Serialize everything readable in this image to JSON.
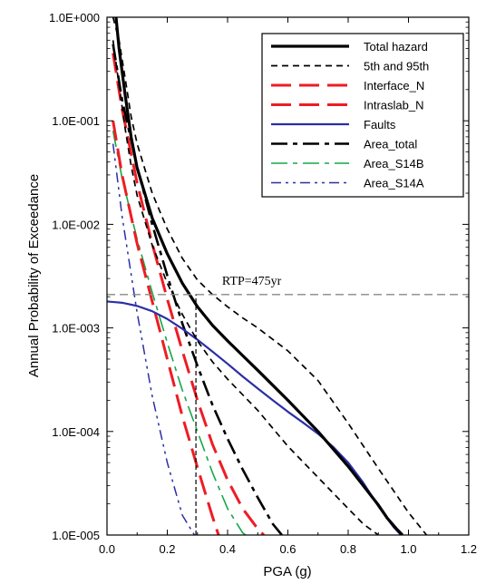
{
  "chart_data": {
    "type": "line",
    "title": "",
    "xlabel": "PGA (g)",
    "ylabel": "Annual Probability of Exceedance",
    "xlim": [
      0,
      1.2
    ],
    "ylim": [
      1e-05,
      1
    ],
    "yscale": "log",
    "x_ticks": [
      {
        "value": 0.0,
        "label": "0.0"
      },
      {
        "value": 0.2,
        "label": "0.2"
      },
      {
        "value": 0.4,
        "label": "0.4"
      },
      {
        "value": 0.6,
        "label": "0.6"
      },
      {
        "value": 0.8,
        "label": "0.8"
      },
      {
        "value": 1.0,
        "label": "1.0"
      },
      {
        "value": 1.2,
        "label": "1.2"
      }
    ],
    "y_ticks": [
      {
        "value": 1,
        "label": "1.0E+000"
      },
      {
        "value": 0.1,
        "label": "1.0E-001"
      },
      {
        "value": 0.01,
        "label": "1.0E-002"
      },
      {
        "value": 0.001,
        "label": "1.0E-003"
      },
      {
        "value": 0.0001,
        "label": "1.0E-004"
      },
      {
        "value": 1e-05,
        "label": "1.0E-005"
      }
    ],
    "legend": "top-right",
    "grid": false,
    "annotations": [
      {
        "text": "RTP=475yr",
        "x": 0.48,
        "y": 0.0026
      },
      {
        "type": "hline",
        "y": 0.0021,
        "x_from": 0.0,
        "x_to": 1.2
      },
      {
        "type": "vline",
        "x": 0.295,
        "y_from": 1e-05,
        "y_to": 0.0021
      }
    ],
    "series": [
      {
        "name": "Total hazard",
        "color": "#000000",
        "style": "solid",
        "width": 3.2,
        "x": [
          0.03,
          0.04,
          0.06,
          0.08,
          0.1,
          0.15,
          0.2,
          0.25,
          0.3,
          0.35,
          0.4,
          0.45,
          0.5,
          0.6,
          0.7,
          0.8,
          0.85,
          0.9,
          0.93,
          0.96,
          0.98
        ],
        "y": [
          1.0,
          0.5,
          0.18,
          0.07,
          0.035,
          0.0115,
          0.0052,
          0.0027,
          0.0016,
          0.00106,
          0.00075,
          0.00054,
          0.00039,
          0.0002,
          0.0001,
          4.6e-05,
          3e-05,
          1.95e-05,
          1.45e-05,
          1.15e-05,
          1e-05
        ]
      },
      {
        "name": "5th and 95th",
        "color": "#000000",
        "style": "dash-short",
        "width": 1.7,
        "lines": [
          {
            "x": [
              0.02,
              0.04,
              0.06,
              0.08,
              0.1,
              0.15,
              0.2,
              0.25,
              0.3,
              0.35,
              0.4,
              0.45,
              0.5,
              0.6,
              0.7,
              0.8,
              0.9,
              1.0,
              1.06
            ],
            "y": [
              1.0,
              0.6,
              0.26,
              0.11,
              0.06,
              0.02,
              0.009,
              0.0047,
              0.0029,
              0.0021,
              0.0016,
              0.00125,
              0.001,
              0.0006,
              0.00031,
              0.00012,
              4.4e-05,
              1.65e-05,
              1e-05
            ]
          },
          {
            "x": [
              0.02,
              0.04,
              0.06,
              0.08,
              0.1,
              0.15,
              0.2,
              0.25,
              0.3,
              0.35,
              0.4,
              0.5,
              0.6,
              0.7,
              0.8,
              0.85,
              0.9
            ],
            "y": [
              0.6,
              0.22,
              0.085,
              0.037,
              0.019,
              0.0063,
              0.0027,
              0.00135,
              0.00075,
              0.00047,
              0.00032,
              0.00016,
              7.2e-05,
              3.6e-05,
              1.8e-05,
              1.28e-05,
              1e-05
            ]
          }
        ]
      },
      {
        "name": "Interface_N",
        "color": "#ee1c24",
        "style": "dash-long",
        "width": 3.0,
        "x": [
          0.02,
          0.05,
          0.1,
          0.15,
          0.2,
          0.25,
          0.3,
          0.35,
          0.4,
          0.45,
          0.5,
          0.52
        ],
        "y": [
          0.45,
          0.13,
          0.025,
          0.0065,
          0.0019,
          0.0006,
          0.0002,
          7.5e-05,
          3.4e-05,
          1.8e-05,
          1.15e-05,
          1e-05
        ]
      },
      {
        "name": "Intraslab_N",
        "color": "#ee1c24",
        "style": "dash-long",
        "width": 3.0,
        "x": [
          0.02,
          0.05,
          0.1,
          0.15,
          0.2,
          0.25,
          0.3,
          0.35,
          0.37
        ],
        "y": [
          0.1,
          0.03,
          0.0065,
          0.0018,
          0.0005,
          0.00014,
          4.5e-05,
          1.5e-05,
          1e-05
        ]
      },
      {
        "name": "Faults",
        "color": "#2b2fa6",
        "style": "solid",
        "width": 2.2,
        "x": [
          0.0,
          0.05,
          0.1,
          0.15,
          0.2,
          0.25,
          0.3,
          0.35,
          0.4,
          0.45,
          0.5,
          0.55,
          0.6,
          0.65,
          0.7,
          0.75,
          0.8,
          0.85,
          0.9,
          0.95,
          0.975
        ],
        "y": [
          0.0018,
          0.00175,
          0.00163,
          0.00145,
          0.00122,
          0.00098,
          0.00077,
          0.00059,
          0.00045,
          0.00034,
          0.00026,
          0.0002,
          0.000155,
          0.000122,
          9.5e-05,
          7.1e-05,
          5e-05,
          3.2e-05,
          1.9e-05,
          1.2e-05,
          1e-05
        ]
      },
      {
        "name": "Area_total",
        "color": "#000000",
        "style": "dash-dot",
        "width": 2.6,
        "x": [
          0.02,
          0.05,
          0.1,
          0.15,
          0.2,
          0.25,
          0.3,
          0.35,
          0.4,
          0.45,
          0.5,
          0.55,
          0.58
        ],
        "y": [
          0.55,
          0.16,
          0.036,
          0.01,
          0.0032,
          0.0011,
          0.00043,
          0.00018,
          8.5e-05,
          4.3e-05,
          2.3e-05,
          1.28e-05,
          1e-05
        ]
      },
      {
        "name": "Area_S14B",
        "color": "#14a84a",
        "style": "dash-dot",
        "width": 1.6,
        "x": [
          0.02,
          0.05,
          0.1,
          0.15,
          0.2,
          0.25,
          0.3,
          0.35,
          0.4,
          0.45,
          0.46
        ],
        "y": [
          0.08,
          0.028,
          0.0072,
          0.0022,
          0.00072,
          0.00025,
          0.0001,
          4e-05,
          1.8e-05,
          1.05e-05,
          1e-05
        ]
      },
      {
        "name": "Area_S14A",
        "color": "#2b2fa6",
        "style": "dash-dot-dot",
        "width": 1.5,
        "x": [
          0.02,
          0.05,
          0.1,
          0.15,
          0.2,
          0.25,
          0.29
        ],
        "y": [
          0.06,
          0.012,
          0.0014,
          0.00022,
          5e-05,
          1.55e-05,
          1e-05
        ]
      }
    ]
  }
}
